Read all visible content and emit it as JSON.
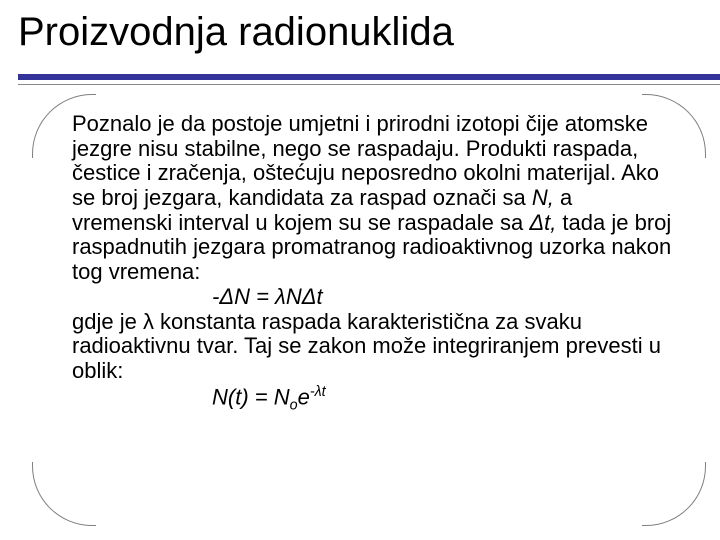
{
  "slide": {
    "title": "Proizvodnja radionuklida",
    "accent_color": "#333399",
    "text_color": "#000000",
    "background_color": "#ffffff",
    "corner_border_color": "#808080",
    "title_fontsize": 40,
    "body_fontsize": 22,
    "body": {
      "p1": "Poznalo je da postoje umjetni i prirodni izotopi čije atomske jezgre nisu stabilne, nego se raspadaju. Produkti raspada, čestice i zračenja, oštećuju neposredno okolni materijal. Ako se broj jezgara, kandidata za raspad označi sa ",
      "p1_var1": "N,",
      "p1_cont": " a vremenski interval u kojem su se raspadale sa ",
      "p1_var2": "Δt,",
      "p1_cont2": " tada je broj raspadnutih jezgara promatranog radioaktivnog uzorka nakon tog vremena:",
      "formula1": "-ΔN = λNΔt",
      "p2": "gdje je λ konstanta raspada karakteristična za svaku radioaktivnu tvar. Taj se zakon može integriranjem prevesti u oblik:",
      "formula2_lhs": "N(t) = N",
      "formula2_sub": "o",
      "formula2_mid": "e",
      "formula2_sup": "-λt"
    }
  }
}
